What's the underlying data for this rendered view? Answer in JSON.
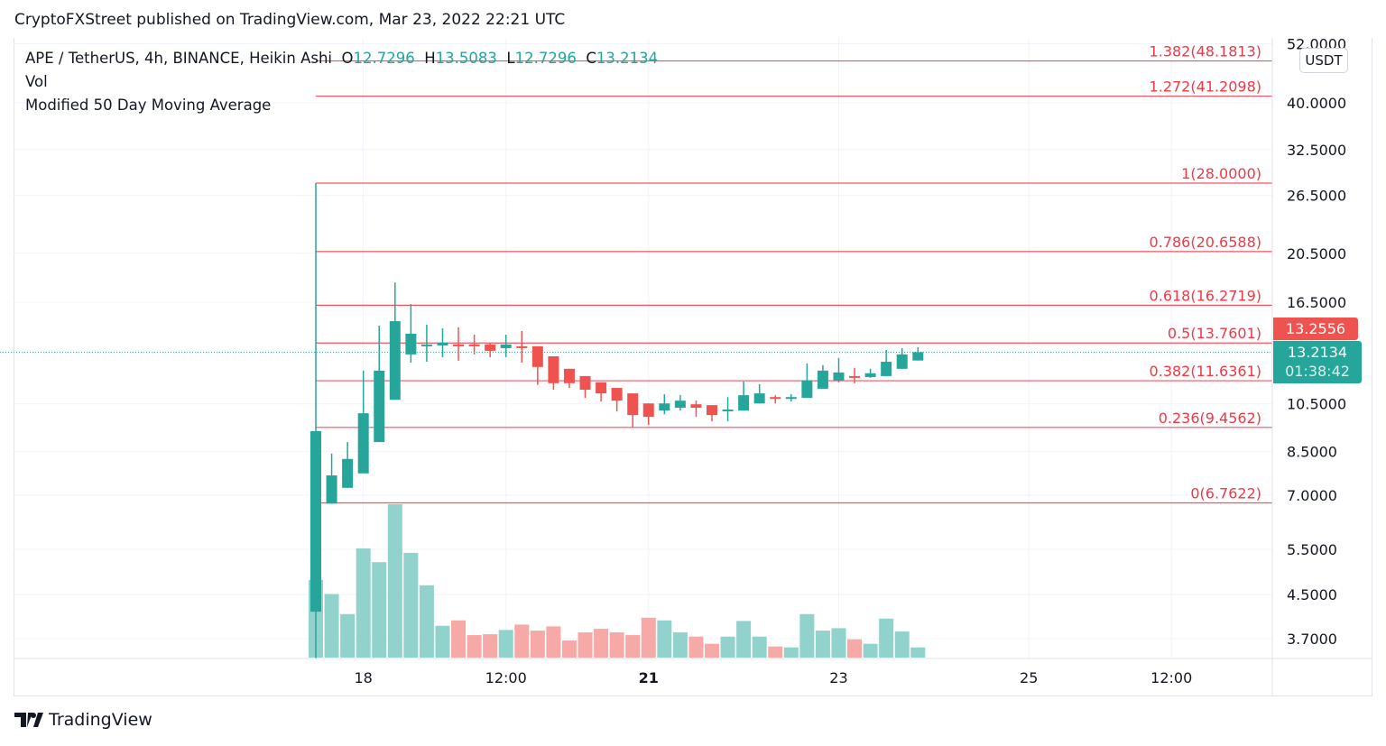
{
  "header": {
    "publisher_line": "CryptoFXStreet published on TradingView.com, Mar 23, 2022 22:21 UTC"
  },
  "legend": {
    "symbol_line": "APE / TetherUS, 4h, BINANCE, Heikin Ashi",
    "o_label": "O",
    "o_value": "12.7296",
    "h_label": "H",
    "h_value": "13.5083",
    "l_label": "L",
    "l_value": "12.7296",
    "c_label": "C",
    "c_value": "13.2134",
    "indicator_vol": "Vol",
    "indicator_ma": "Modified 50 Day Moving Average"
  },
  "price_axis": {
    "currency_button": "USDT"
  },
  "price_labels": {
    "red_value": "13.2556",
    "current_value": "13.2134",
    "countdown": "01:38:42"
  },
  "footer": {
    "brand": "TradingView"
  },
  "colors": {
    "up": "#26a69a",
    "down": "#ef5350",
    "fib": "#f23645",
    "vol_up": "#92d2cc",
    "vol_down": "#f7a9a7"
  },
  "chart_data": {
    "type": "candlestick",
    "title": "APE / TetherUS, 4h, BINANCE, Heikin Ashi",
    "y_scale": "log",
    "ylim": [
      3.4,
      52
    ],
    "y_ticks": [
      "52.0000",
      "40.0000",
      "32.5000",
      "26.5000",
      "20.5000",
      "16.5000",
      "10.5000",
      "8.5000",
      "7.0000",
      "5.5000",
      "4.5000",
      "3.7000"
    ],
    "x_ticks": [
      {
        "label": "18",
        "index": 3,
        "bold": false
      },
      {
        "label": "12:00",
        "index": 12,
        "bold": false
      },
      {
        "label": "21",
        "index": 21,
        "bold": true
      },
      {
        "label": "23",
        "index": 33,
        "bold": false
      },
      {
        "label": "25",
        "index": 45,
        "bold": false
      },
      {
        "label": "12:00",
        "index": 54,
        "bold": false
      }
    ],
    "current_price": 13.2134,
    "candles_ohlc": [
      [
        4.17,
        28.0,
        3.39,
        9.3
      ],
      [
        6.74,
        8.42,
        6.74,
        7.64
      ],
      [
        7.23,
        8.86,
        7.23,
        8.22
      ],
      [
        7.71,
        12.17,
        7.71,
        10.07
      ],
      [
        8.86,
        14.86,
        8.86,
        12.17
      ],
      [
        10.69,
        18.01,
        10.69,
        15.16
      ],
      [
        13.08,
        16.36,
        12.61,
        14.34
      ],
      [
        13.67,
        14.92,
        12.66,
        13.67
      ],
      [
        13.61,
        14.68,
        12.92,
        13.78
      ],
      [
        13.67,
        14.75,
        12.72,
        13.61
      ],
      [
        13.67,
        14.28,
        13.08,
        13.61
      ],
      [
        13.67,
        13.78,
        12.92,
        13.29
      ],
      [
        13.45,
        14.28,
        12.92,
        13.67
      ],
      [
        13.56,
        14.51,
        12.61,
        13.56
      ],
      [
        13.56,
        13.56,
        11.42,
        12.37
      ],
      [
        12.97,
        12.97,
        11.18,
        11.51
      ],
      [
        12.27,
        12.27,
        11.27,
        11.51
      ],
      [
        11.88,
        11.88,
        10.78,
        11.18
      ],
      [
        11.55,
        11.55,
        10.61,
        11.0
      ],
      [
        11.27,
        11.27,
        10.15,
        10.65
      ],
      [
        11.0,
        11.0,
        9.45,
        9.99
      ],
      [
        10.52,
        10.52,
        9.56,
        9.91
      ],
      [
        10.19,
        10.96,
        10.03,
        10.52
      ],
      [
        10.32,
        10.91,
        10.19,
        10.65
      ],
      [
        10.48,
        10.65,
        9.91,
        10.32
      ],
      [
        10.44,
        10.44,
        9.72,
        9.99
      ],
      [
        10.19,
        10.82,
        9.72,
        10.24
      ],
      [
        10.19,
        11.6,
        10.19,
        10.91
      ],
      [
        10.52,
        11.46,
        10.52,
        11.0
      ],
      [
        10.82,
        10.91,
        10.52,
        10.74
      ],
      [
        10.74,
        10.96,
        10.61,
        10.82
      ],
      [
        10.78,
        12.56,
        10.78,
        11.65
      ],
      [
        11.23,
        12.47,
        11.23,
        12.17
      ],
      [
        11.65,
        12.87,
        11.55,
        12.07
      ],
      [
        11.88,
        12.32,
        11.51,
        11.83
      ],
      [
        11.83,
        12.27,
        11.79,
        12.03
      ],
      [
        11.88,
        13.34,
        11.88,
        12.66
      ],
      [
        12.27,
        13.45,
        12.27,
        13.08
      ],
      [
        12.7296,
        13.5083,
        12.7296,
        13.2134
      ]
    ],
    "candle_direction": [
      "up",
      "up",
      "up",
      "up",
      "up",
      "up",
      "up",
      "up",
      "up",
      "down",
      "down",
      "down",
      "up",
      "down",
      "down",
      "down",
      "down",
      "down",
      "down",
      "down",
      "down",
      "down",
      "up",
      "up",
      "down",
      "down",
      "up",
      "up",
      "up",
      "down",
      "up",
      "up",
      "up",
      "up",
      "down",
      "up",
      "up",
      "up",
      "up"
    ],
    "volume_relative": [
      259,
      212,
      145,
      364,
      318,
      511,
      349,
      241,
      106,
      124,
      75,
      78,
      92,
      110,
      90,
      104,
      57,
      84,
      96,
      84,
      75,
      133,
      124,
      84,
      70,
      46,
      70,
      122,
      70,
      37,
      34,
      145,
      90,
      98,
      61,
      46,
      130,
      87,
      34
    ],
    "fib_levels": [
      {
        "label": "1.382(48.1813)",
        "price": 48.1813
      },
      {
        "label": "1.272(41.2098)",
        "price": 41.2098
      },
      {
        "label": "1(28.0000)",
        "price": 28.0
      },
      {
        "label": "0.786(20.6588)",
        "price": 20.6588
      },
      {
        "label": "0.618(16.2719)",
        "price": 16.2719
      },
      {
        "label": "0.5(13.7601)",
        "price": 13.7601
      },
      {
        "label": "0.382(11.6361)",
        "price": 11.6361
      },
      {
        "label": "0.236(9.4562)",
        "price": 9.4562
      },
      {
        "label": "0(6.7622)",
        "price": 6.7622
      }
    ]
  }
}
